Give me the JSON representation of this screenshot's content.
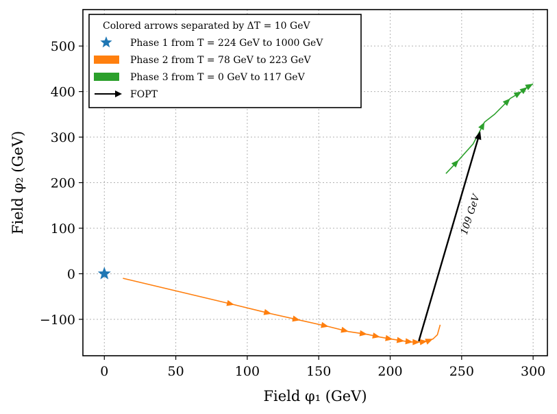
{
  "chart_data": {
    "type": "line",
    "xlabel": "Field φ₁ (GeV)",
    "ylabel": "Field φ₂ (GeV)",
    "xlim": [
      -15,
      310
    ],
    "ylim": [
      -180,
      580
    ],
    "xticks": [
      0,
      50,
      100,
      150,
      200,
      250,
      300
    ],
    "yticks": [
      -100,
      0,
      100,
      200,
      300,
      400,
      500
    ],
    "xtick_labels": [
      "0",
      "50",
      "100",
      "150",
      "200",
      "250",
      "300"
    ],
    "ytick_labels": [
      "−100",
      "0",
      "100",
      "200",
      "300",
      "400",
      "500"
    ],
    "grid": true,
    "legend": {
      "position": "top-left",
      "title": "Colored arrows separated by ΔT = 10 GeV",
      "entries": [
        {
          "label": "Phase 1 from T = 224 GeV to 1000 GeV",
          "color": "#1f77b4",
          "marker": "star"
        },
        {
          "label": "Phase 2 from T = 78 GeV to 223 GeV",
          "color": "#ff7f0e",
          "marker": "patch"
        },
        {
          "label": "Phase 3 from T = 0 GeV to 117 GeV",
          "color": "#2ca02c",
          "marker": "patch"
        },
        {
          "label": "FOPT",
          "color": "#000000",
          "marker": "arrow"
        }
      ]
    },
    "series": [
      {
        "name": "Phase 1",
        "color": "#1f77b4",
        "points": [
          [
            0,
            0
          ]
        ]
      },
      {
        "name": "Phase 2",
        "color": "#ff7f0e",
        "points": [
          [
            13,
            -10
          ],
          [
            91,
            -68
          ],
          [
            117,
            -88
          ],
          [
            137,
            -102
          ],
          [
            157,
            -116
          ],
          [
            171,
            -127
          ],
          [
            184,
            -133
          ],
          [
            193,
            -139
          ],
          [
            202,
            -144
          ],
          [
            210,
            -148
          ],
          [
            216,
            -150
          ],
          [
            221,
            -150
          ],
          [
            226,
            -148
          ],
          [
            230,
            -143
          ],
          [
            233,
            -134
          ],
          [
            235,
            -112
          ]
        ]
      },
      {
        "name": "Phase 3",
        "color": "#2ca02c",
        "points": [
          [
            239,
            220
          ],
          [
            248,
            250
          ],
          [
            258,
            285
          ],
          [
            266,
            333
          ],
          [
            273,
            350
          ],
          [
            284,
            385
          ],
          [
            292,
            400
          ],
          [
            296,
            410
          ],
          [
            300,
            417
          ]
        ]
      }
    ],
    "arrow_markers": {
      "Phase 2": [
        1,
        2,
        3,
        4,
        5,
        6,
        7,
        8,
        9,
        10,
        11,
        12,
        13
      ],
      "Phase 3": [
        1,
        3,
        5,
        6,
        7,
        8
      ]
    },
    "fopt": {
      "from": [
        220,
        -148
      ],
      "to": [
        263,
        313
      ],
      "color": "#000000"
    },
    "annotations": [
      {
        "text": "109 GeV",
        "x": 258,
        "y": 128,
        "rotation_deg": -72
      }
    ]
  }
}
